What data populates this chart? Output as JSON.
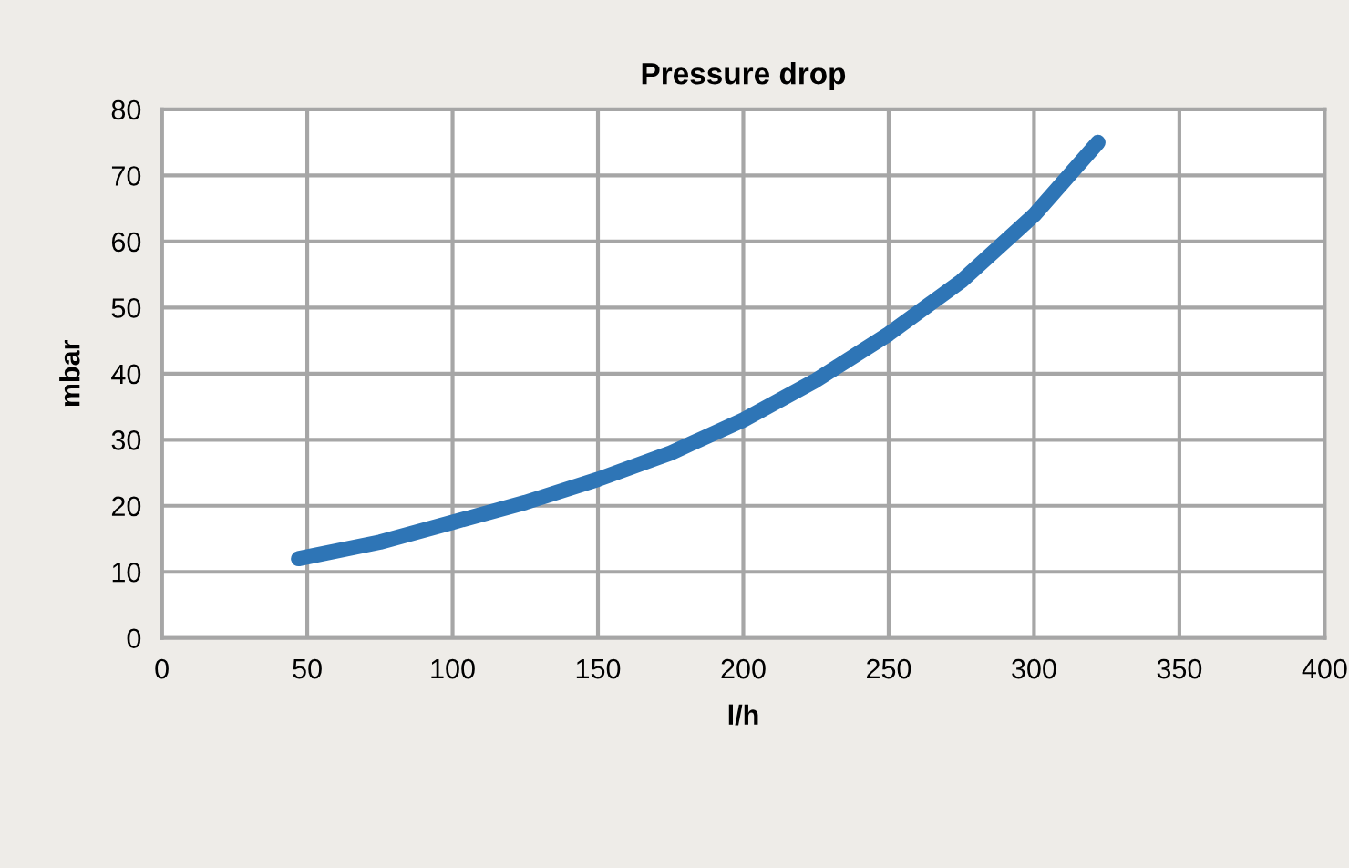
{
  "chart_data": {
    "type": "line",
    "title": "Pressure drop",
    "xlabel": "l/h",
    "ylabel": "mbar",
    "xlim": [
      0,
      400
    ],
    "ylim": [
      0,
      80
    ],
    "xticks": [
      0,
      50,
      100,
      150,
      200,
      250,
      300,
      350,
      400
    ],
    "yticks": [
      0,
      10,
      20,
      30,
      40,
      50,
      60,
      70,
      80
    ],
    "grid": true,
    "marker": "none",
    "line_style": "solid",
    "series": [
      {
        "color": "#2e75b6",
        "x": [
          47,
          75,
          100,
          125,
          150,
          175,
          200,
          225,
          250,
          275,
          300,
          322
        ],
        "values": [
          12,
          14.5,
          17.5,
          20.5,
          24,
          28,
          33,
          39,
          46,
          54,
          64,
          75
        ]
      }
    ]
  }
}
